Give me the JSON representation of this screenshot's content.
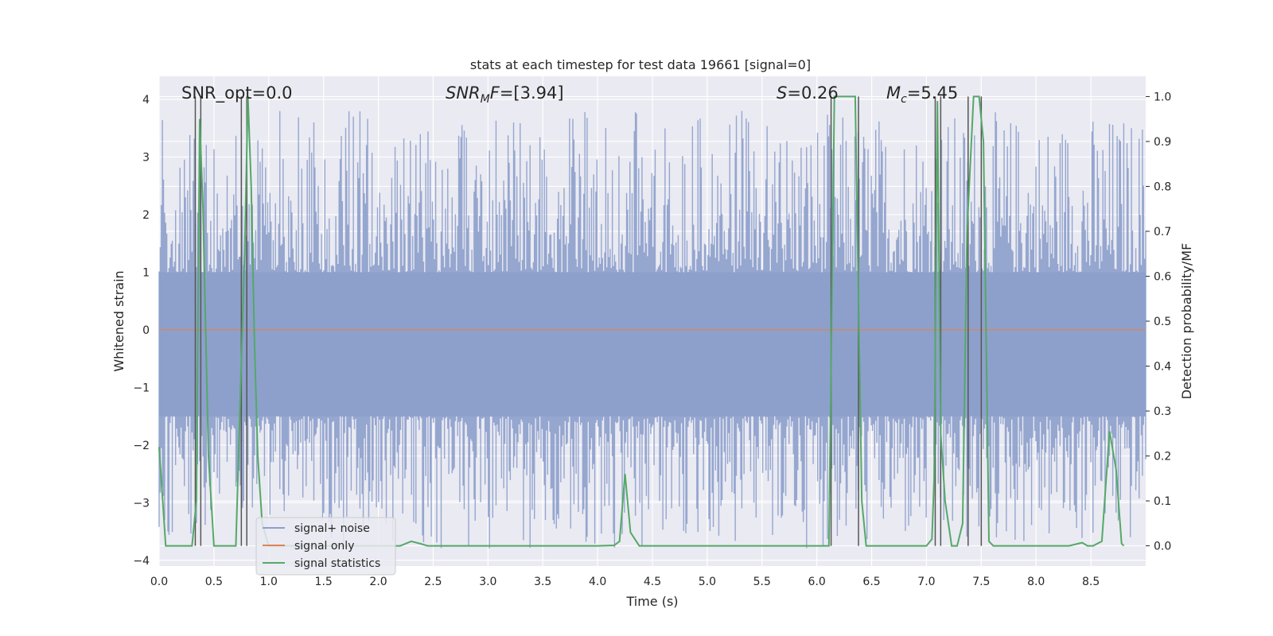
{
  "chart_data": {
    "type": "line",
    "title": "stats at each timestep for test data 19661 [signal=0]",
    "xlabel": "Time (s)",
    "ylabel": "Whitened strain",
    "ylabel_right": "Detection probability/MF",
    "xlim": [
      0,
      9.0
    ],
    "ylim": [
      -4.1,
      4.4
    ],
    "ylim_right": [
      -0.045,
      1.045
    ],
    "xticks": [
      0.0,
      0.5,
      1.0,
      1.5,
      2.0,
      2.5,
      3.0,
      3.5,
      4.0,
      4.5,
      5.0,
      5.5,
      6.0,
      6.5,
      7.0,
      7.5,
      8.0,
      8.5
    ],
    "xtick_labels": [
      "0.0",
      "0.5",
      "1.0",
      "1.5",
      "2.0",
      "2.5",
      "3.0",
      "3.5",
      "4.0",
      "4.5",
      "5.0",
      "5.5",
      "6.0",
      "6.5",
      "7.0",
      "7.5",
      "8.0",
      "8.5"
    ],
    "yticks": [
      -4,
      -3,
      -2,
      -1,
      0,
      1,
      2,
      3,
      4
    ],
    "ytick_labels": [
      "−4",
      "−3",
      "−2",
      "−1",
      "0",
      "1",
      "2",
      "3",
      "4"
    ],
    "yticks_right": [
      0.0,
      0.1,
      0.2,
      0.3,
      0.4,
      0.5,
      0.6,
      0.7,
      0.8,
      0.9,
      1.0
    ],
    "ytick_labels_right": [
      "0.0",
      "0.1",
      "0.2",
      "0.3",
      "0.4",
      "0.5",
      "0.6",
      "0.7",
      "0.8",
      "0.9",
      "1.0"
    ],
    "grid": true,
    "legend_position": "bottom-left",
    "colors": {
      "noise": "#8c9fcb",
      "signal": "#dd8452",
      "stats": "#55a868",
      "vlines": "#555555",
      "plot_bg": "#eaeaf2",
      "grid": "#ffffff"
    },
    "annotations": {
      "snr_opt": "SNR_opt=0.0",
      "snr_mf": "=[3.94]",
      "s_val": "=0.26",
      "mc_val": "=5.45"
    },
    "noise_envelope": {
      "core_upper": 1.0,
      "core_lower": -1.5,
      "spike_max": 3.8,
      "spike_min": -3.8,
      "num_samples": 900
    },
    "series": [
      {
        "name": "signal+ noise",
        "axis": "left",
        "description": "whitened strain samples"
      },
      {
        "name": "signal only",
        "axis": "left",
        "x": [
          0.0,
          9.0
        ],
        "y": [
          0.0,
          0.0
        ]
      },
      {
        "name": "signal statistics",
        "axis": "right",
        "x": [
          0.0,
          0.06,
          0.14,
          0.22,
          0.3,
          0.34,
          0.37,
          0.4,
          0.45,
          0.5,
          0.62,
          0.7,
          0.78,
          0.81,
          0.84,
          0.87,
          0.9,
          0.94,
          1.0,
          1.2,
          1.5,
          2.0,
          2.2,
          2.3,
          2.38,
          2.45,
          3.0,
          3.5,
          4.0,
          4.15,
          4.2,
          4.25,
          4.3,
          4.38,
          4.55,
          5.0,
          5.5,
          6.0,
          6.11,
          6.16,
          6.25,
          6.35,
          6.41,
          6.45,
          6.5,
          6.8,
          7.0,
          7.05,
          7.07,
          7.1,
          7.13,
          7.17,
          7.23,
          7.28,
          7.33,
          7.37,
          7.43,
          7.48,
          7.52,
          7.57,
          7.61,
          8.0,
          8.3,
          8.42,
          8.47,
          8.52,
          8.6,
          8.67,
          8.73,
          8.78,
          8.8
        ],
        "y": [
          0.22,
          0.0,
          0.0,
          0.0,
          0.0,
          0.1,
          0.95,
          0.75,
          0.2,
          0.0,
          0.0,
          0.0,
          0.65,
          1.0,
          0.8,
          0.45,
          0.2,
          0.05,
          0.0,
          0.0,
          0.0,
          0.0,
          0.0,
          0.01,
          0.005,
          0.0,
          0.0,
          0.0,
          0.0,
          0.001,
          0.01,
          0.16,
          0.03,
          0.0,
          0.0,
          0.0,
          0.0,
          0.0,
          0.0,
          1.0,
          1.0,
          1.0,
          0.1,
          0.0,
          0.0,
          0.0,
          0.0,
          0.015,
          0.15,
          0.99,
          0.25,
          0.1,
          0.0,
          0.0,
          0.05,
          0.7,
          1.0,
          1.0,
          0.9,
          0.01,
          0.0,
          0.0,
          0.0,
          0.007,
          0.0,
          0.0,
          0.01,
          0.255,
          0.17,
          0.005,
          0.0
        ]
      }
    ],
    "vlines": [
      0.33,
      0.38,
      0.75,
      0.8,
      6.13,
      6.38,
      7.08,
      7.13,
      7.38,
      7.5
    ]
  },
  "legend": {
    "items": [
      "signal+ noise",
      "signal only",
      "signal statistics"
    ]
  }
}
